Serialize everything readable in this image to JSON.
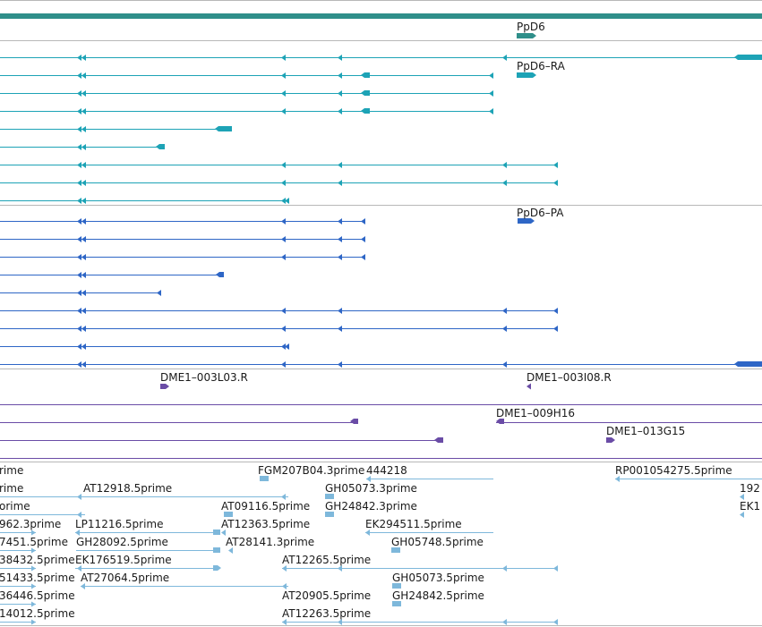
{
  "colors": {
    "gene": "#2f8f8a",
    "transcript_ra": "#1da3b6",
    "transcript_pa": "#2e66c6",
    "oligo": "#6a4ca6",
    "est": "#7eb8db",
    "divider": "#b8b8b8"
  },
  "icons": {
    "intron_arrow": "triangle-left-icon",
    "strand_arrow": "triangle-right-icon"
  },
  "gene_track": {
    "gene_label": "PpD6"
  },
  "transcript_tracks": [
    {
      "label": "PpD6–RA",
      "row_count": 9
    },
    {
      "label": "PpD6–PA",
      "row_count": 9
    }
  ],
  "oligo_track": {
    "labels": [
      "DME1–003L03.R",
      "DME1–003I08.R",
      "DME1–009H16",
      "DME1–013G15"
    ]
  },
  "est_track": {
    "labels": [
      "rime",
      "FGM207B04.3prime",
      "444218",
      "RP001054275.5prime",
      "rime",
      "AT12918.5prime",
      "GH05073.3prime",
      "192",
      "orime",
      "AT09116.5prime",
      "GH24842.3prime",
      "EK1",
      "962.3prime",
      "LP11216.5prime",
      "AT12363.5prime",
      "EK294511.5prime",
      "7451.5prime",
      "GH28092.5prime",
      "AT28141.3prime",
      "GH05748.5prime",
      "38432.5prime",
      "EK176519.5prime",
      "AT12265.5prime",
      "51433.5prime",
      "AT27064.5prime",
      "GH05073.5prime",
      "36446.5prime",
      "AT20905.5prime",
      "GH24842.5prime",
      "14012.5prime",
      "AT12263.5prime"
    ]
  }
}
